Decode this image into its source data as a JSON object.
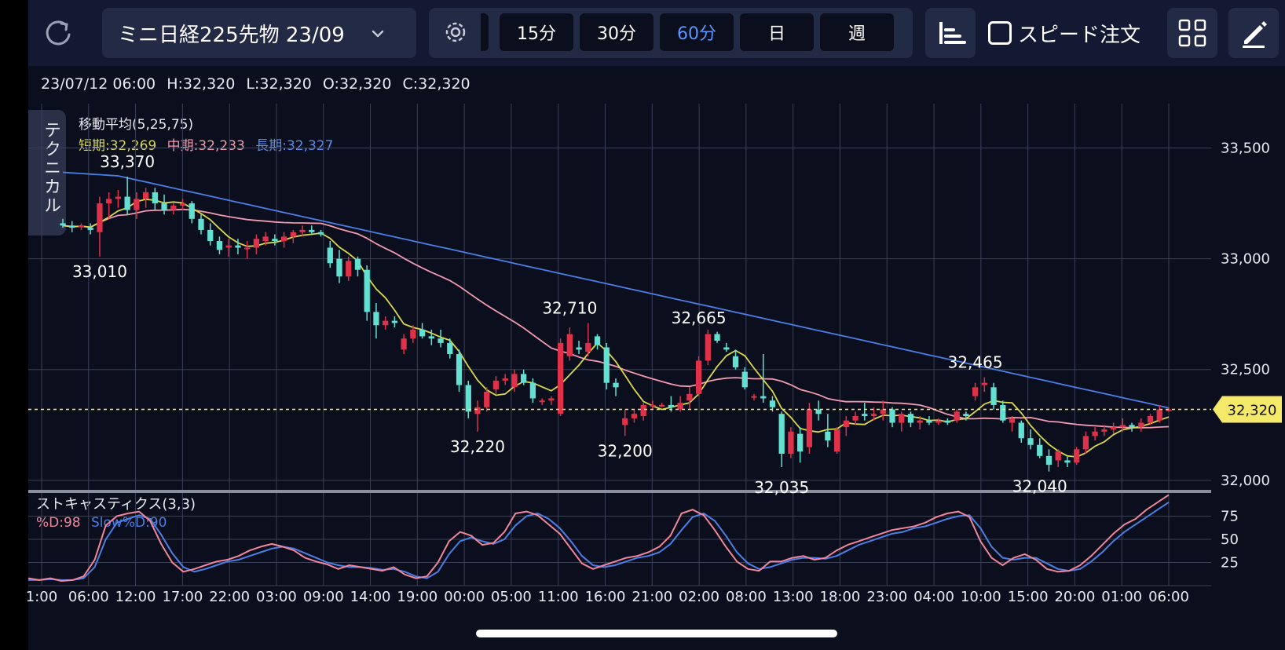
{
  "toolbar": {
    "instrument": "ミニ日経225先物 23/09",
    "timeframes": [
      "15分",
      "30分",
      "60分",
      "日",
      "週"
    ],
    "active_timeframe": "60分",
    "speed_order_label": "スピード注文",
    "technical_tab_label": "テクニカル"
  },
  "ohlc": {
    "datetime": "23/07/12 06:00",
    "high": "H:32,320",
    "low": "L:32,320",
    "open": "O:32,320",
    "close": "C:32,320"
  },
  "moving_average": {
    "title": "移動平均(5,25,75)",
    "short_label": "短期:32,269",
    "mid_label": "中期:32,233",
    "long_label": "長期:32,327"
  },
  "stochastic": {
    "title": "ストキャスティクス(3,3)",
    "d_label": "%D:98",
    "slowd_label": "Slow%D:90"
  },
  "colors": {
    "up": "#e0314a",
    "down": "#62e0d2",
    "ma_short": "#d9d94a",
    "ma_mid": "#f29ab0",
    "ma_long": "#4b7fe6",
    "current_price": "#f5e96a",
    "stoch_d": "#f2869c",
    "stoch_slow": "#4b7fe6"
  },
  "chart_data": {
    "type": "candlestick",
    "y_range": [
      31950,
      33700
    ],
    "y_ticks": [
      32000,
      32500,
      33000,
      33500
    ],
    "y_tick_labels": [
      "32,000",
      "32,500",
      "33,000",
      "33,500"
    ],
    "x_tick_labels": [
      "1:00",
      "06:00",
      "12:00",
      "17:00",
      "22:00",
      "03:00",
      "09:00",
      "14:00",
      "19:00",
      "00:00",
      "05:00",
      "11:00",
      "16:00",
      "21:00",
      "02:00",
      "08:00",
      "13:00",
      "18:00",
      "23:00",
      "04:00",
      "10:00",
      "15:00",
      "20:00",
      "01:00",
      "06:00"
    ],
    "current_price": 32320,
    "current_price_label": "32,320",
    "annotations": [
      {
        "bar": 7,
        "value": 33370,
        "label": "33,370",
        "pos": "above"
      },
      {
        "bar": 4,
        "value": 33010,
        "label": "33,010",
        "pos": "below"
      },
      {
        "bar": 45,
        "value": 32220,
        "label": "32,220",
        "pos": "below"
      },
      {
        "bar": 55,
        "value": 32710,
        "label": "32,710",
        "pos": "above"
      },
      {
        "bar": 61,
        "value": 32200,
        "label": "32,200",
        "pos": "below"
      },
      {
        "bar": 69,
        "value": 32665,
        "label": "32,665",
        "pos": "above"
      },
      {
        "bar": 78,
        "value": 32035,
        "label": "32,035",
        "pos": "below"
      },
      {
        "bar": 99,
        "value": 32465,
        "label": "32,465",
        "pos": "above"
      },
      {
        "bar": 106,
        "value": 32040,
        "label": "32,040",
        "pos": "below"
      }
    ],
    "candles": [
      [
        33160,
        33180,
        33140,
        33150
      ],
      [
        33150,
        33170,
        33120,
        33140
      ],
      [
        33150,
        33160,
        33130,
        33150
      ],
      [
        33140,
        33160,
        33110,
        33130
      ],
      [
        33120,
        33280,
        33010,
        33250
      ],
      [
        33250,
        33300,
        33180,
        33270
      ],
      [
        33270,
        33310,
        33230,
        33280
      ],
      [
        33280,
        33370,
        33200,
        33220
      ],
      [
        33220,
        33300,
        33180,
        33270
      ],
      [
        33270,
        33320,
        33230,
        33300
      ],
      [
        33300,
        33320,
        33220,
        33250
      ],
      [
        33250,
        33290,
        33200,
        33220
      ],
      [
        33220,
        33250,
        33200,
        33240
      ],
      [
        33240,
        33270,
        33220,
        33250
      ],
      [
        33250,
        33260,
        33160,
        33180
      ],
      [
        33180,
        33200,
        33110,
        33130
      ],
      [
        33130,
        33160,
        33060,
        33080
      ],
      [
        33080,
        33100,
        33020,
        33040
      ],
      [
        33050,
        33090,
        33010,
        33060
      ],
      [
        33060,
        33090,
        33020,
        33050
      ],
      [
        33050,
        33080,
        33000,
        33050
      ],
      [
        33050,
        33110,
        33020,
        33090
      ],
      [
        33080,
        33120,
        33060,
        33100
      ],
      [
        33090,
        33110,
        33060,
        33080
      ],
      [
        33080,
        33120,
        33050,
        33100
      ],
      [
        33100,
        33130,
        33070,
        33120
      ],
      [
        33120,
        33150,
        33100,
        33130
      ],
      [
        33130,
        33150,
        33110,
        33120
      ],
      [
        33120,
        33130,
        33100,
        33110
      ],
      [
        33050,
        33080,
        32960,
        32980
      ],
      [
        33000,
        33040,
        32890,
        32920
      ],
      [
        32920,
        33010,
        32900,
        32990
      ],
      [
        33000,
        33010,
        32920,
        32950
      ],
      [
        32950,
        32970,
        32720,
        32760
      ],
      [
        32760,
        32800,
        32640,
        32700
      ],
      [
        32700,
        32740,
        32680,
        32720
      ],
      [
        32720,
        32740,
        32690,
        32710
      ],
      [
        32590,
        32660,
        32570,
        32640
      ],
      [
        32640,
        32700,
        32620,
        32680
      ],
      [
        32680,
        32710,
        32640,
        32650
      ],
      [
        32650,
        32680,
        32610,
        32640
      ],
      [
        32640,
        32680,
        32600,
        32620
      ],
      [
        32620,
        32640,
        32550,
        32570
      ],
      [
        32570,
        32590,
        32400,
        32430
      ],
      [
        32430,
        32450,
        32280,
        32310
      ],
      [
        32300,
        32360,
        32220,
        32330
      ],
      [
        32330,
        32420,
        32310,
        32400
      ],
      [
        32410,
        32470,
        32390,
        32450
      ],
      [
        32450,
        32480,
        32430,
        32460
      ],
      [
        32420,
        32500,
        32400,
        32480
      ],
      [
        32480,
        32500,
        32430,
        32440
      ],
      [
        32440,
        32460,
        32350,
        32370
      ],
      [
        32360,
        32370,
        32340,
        32360
      ],
      [
        32360,
        32380,
        32340,
        32370
      ],
      [
        32300,
        32640,
        32290,
        32620
      ],
      [
        32560,
        32690,
        32540,
        32660
      ],
      [
        32600,
        32630,
        32570,
        32590
      ],
      [
        32580,
        32710,
        32560,
        32620
      ],
      [
        32650,
        32660,
        32590,
        32610
      ],
      [
        32600,
        32620,
        32410,
        32440
      ],
      [
        32440,
        32460,
        32380,
        32420
      ],
      [
        32250,
        32320,
        32200,
        32280
      ],
      [
        32280,
        32320,
        32260,
        32300
      ],
      [
        32290,
        32350,
        32270,
        32340
      ],
      [
        32340,
        32360,
        32320,
        32340
      ],
      [
        32340,
        32350,
        32330,
        32340
      ],
      [
        32340,
        32380,
        32310,
        32330
      ],
      [
        32320,
        32380,
        32310,
        32350
      ],
      [
        32360,
        32420,
        32320,
        32390
      ],
      [
        32390,
        32560,
        32380,
        32540
      ],
      [
        32540,
        32680,
        32520,
        32660
      ],
      [
        32660,
        32670,
        32620,
        32630
      ],
      [
        32600,
        32620,
        32580,
        32590
      ],
      [
        32560,
        32590,
        32500,
        32510
      ],
      [
        32490,
        32510,
        32410,
        32420
      ],
      [
        32380,
        32390,
        32360,
        32380
      ],
      [
        32380,
        32570,
        32350,
        32370
      ],
      [
        32360,
        32380,
        32310,
        32330
      ],
      [
        32300,
        32310,
        32060,
        32120
      ],
      [
        32120,
        32240,
        32100,
        32220
      ],
      [
        32210,
        32240,
        32080,
        32130
      ],
      [
        32150,
        32350,
        32120,
        32320
      ],
      [
        32320,
        32360,
        32270,
        32300
      ],
      [
        32220,
        32300,
        32150,
        32180
      ],
      [
        32130,
        32240,
        32120,
        32230
      ],
      [
        32240,
        32290,
        32200,
        32270
      ],
      [
        32270,
        32310,
        32250,
        32290
      ],
      [
        32300,
        32350,
        32270,
        32290
      ],
      [
        32290,
        32330,
        32270,
        32300
      ],
      [
        32300,
        32360,
        32270,
        32320
      ],
      [
        32320,
        32330,
        32240,
        32260
      ],
      [
        32260,
        32310,
        32220,
        32300
      ],
      [
        32300,
        32310,
        32240,
        32260
      ],
      [
        32260,
        32290,
        32230,
        32270
      ],
      [
        32270,
        32290,
        32250,
        32260
      ],
      [
        32260,
        32280,
        32250,
        32270
      ],
      [
        32270,
        32280,
        32250,
        32260
      ],
      [
        32270,
        32320,
        32260,
        32310
      ],
      [
        32300,
        32310,
        32270,
        32290
      ],
      [
        32380,
        32440,
        32360,
        32420
      ],
      [
        32430,
        32465,
        32400,
        32440
      ],
      [
        32420,
        32440,
        32320,
        32340
      ],
      [
        32340,
        32360,
        32260,
        32270
      ],
      [
        32260,
        32290,
        32220,
        32280
      ],
      [
        32260,
        32270,
        32170,
        32190
      ],
      [
        32190,
        32230,
        32140,
        32160
      ],
      [
        32160,
        32190,
        32100,
        32110
      ],
      [
        32110,
        32140,
        32040,
        32070
      ],
      [
        32090,
        32140,
        32060,
        32130
      ],
      [
        32090,
        32110,
        32060,
        32080
      ],
      [
        32080,
        32150,
        32070,
        32140
      ],
      [
        32140,
        32220,
        32120,
        32200
      ],
      [
        32200,
        32240,
        32180,
        32220
      ],
      [
        32220,
        32250,
        32200,
        32230
      ],
      [
        32230,
        32260,
        32210,
        32240
      ],
      [
        32240,
        32280,
        32220,
        32250
      ],
      [
        32250,
        32260,
        32220,
        32240
      ],
      [
        32240,
        32280,
        32220,
        32260
      ],
      [
        32260,
        32300,
        32250,
        32290
      ],
      [
        32270,
        32340,
        32260,
        32320
      ],
      [
        32320,
        32330,
        32310,
        32320
      ]
    ],
    "stoch": {
      "ylim": [
        0,
        100
      ],
      "ticks": [
        25,
        50,
        75
      ],
      "d": [
        8,
        6,
        8,
        5,
        6,
        10,
        28,
        65,
        75,
        78,
        80,
        70,
        45,
        25,
        15,
        18,
        22,
        26,
        28,
        32,
        38,
        42,
        45,
        42,
        38,
        30,
        26,
        23,
        18,
        22,
        20,
        18,
        16,
        20,
        12,
        8,
        10,
        25,
        48,
        58,
        54,
        44,
        46,
        58,
        78,
        80,
        76,
        66,
        56,
        40,
        24,
        18,
        22,
        26,
        30,
        32,
        36,
        42,
        54,
        78,
        82,
        76,
        60,
        42,
        26,
        18,
        16,
        26,
        26,
        30,
        32,
        28,
        30,
        38,
        44,
        48,
        52,
        56,
        60,
        62,
        64,
        68,
        74,
        78,
        80,
        74,
        48,
        30,
        22,
        30,
        34,
        28,
        18,
        15,
        16,
        22,
        32,
        44,
        56,
        66,
        72,
        82,
        90,
        98
      ],
      "slowd": [
        6,
        6,
        7,
        6,
        6,
        8,
        20,
        50,
        68,
        72,
        76,
        72,
        55,
        35,
        20,
        15,
        18,
        22,
        26,
        28,
        32,
        36,
        40,
        42,
        40,
        35,
        30,
        25,
        22,
        20,
        20,
        19,
        17,
        18,
        15,
        10,
        8,
        15,
        34,
        48,
        52,
        48,
        45,
        50,
        65,
        75,
        78,
        72,
        62,
        48,
        32,
        22,
        20,
        22,
        26,
        30,
        32,
        36,
        45,
        60,
        74,
        78,
        70,
        54,
        36,
        24,
        18,
        20,
        24,
        28,
        30,
        30,
        29,
        32,
        38,
        44,
        48,
        52,
        56,
        58,
        62,
        64,
        68,
        72,
        75,
        76,
        62,
        42,
        30,
        28,
        30,
        30,
        24,
        18,
        16,
        18,
        26,
        36,
        48,
        58,
        66,
        74,
        82,
        90
      ]
    }
  }
}
